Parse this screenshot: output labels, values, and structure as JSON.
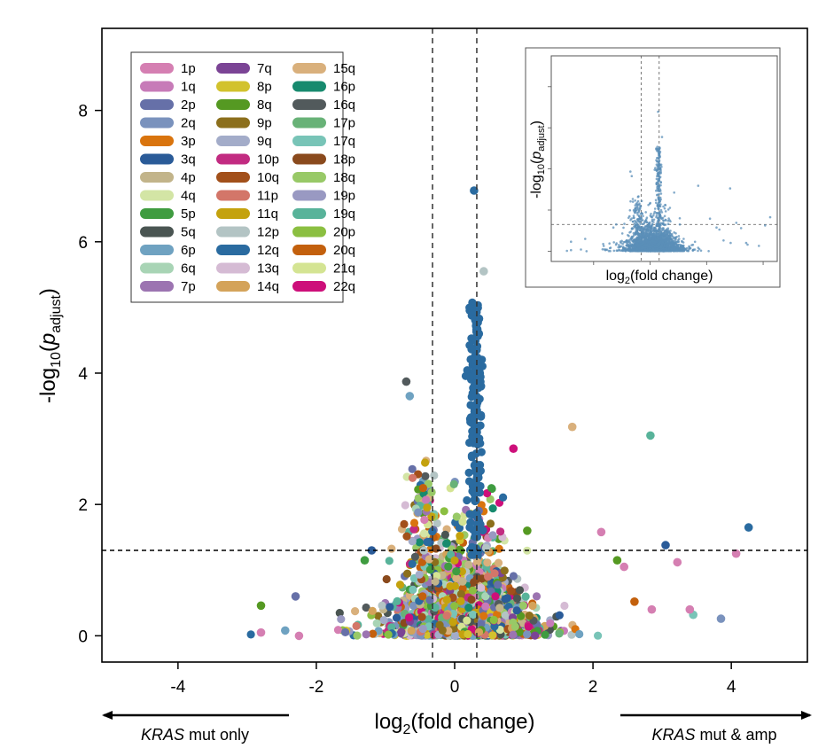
{
  "chart_data": {
    "type": "scatter",
    "title": "",
    "xlabel_pre": "log",
    "xlabel_sub": "2",
    "xlabel_post": "(fold change)",
    "ylabel_pre": "-log",
    "ylabel_sub": "10",
    "ylabel_mid": "(",
    "ylabel_p": "p",
    "ylabel_psub": "adjust",
    "ylabel_post": ")",
    "xlim": [
      -5.1,
      5.1
    ],
    "ylim": [
      -0.4,
      9.25
    ],
    "x_ticks": [
      -4,
      -2,
      0,
      2,
      4
    ],
    "x_tick_labels": [
      "-4",
      "-2",
      "0",
      "2",
      "4"
    ],
    "y_ticks": [
      0,
      2,
      4,
      6,
      8
    ],
    "y_tick_labels": [
      "0",
      "2",
      "4",
      "6",
      "8"
    ],
    "threshold_lines": {
      "vertical": [
        -0.32,
        0.32
      ],
      "horizontal": 1.3
    },
    "legend_position": "top-left",
    "legend": [
      {
        "label": "1p",
        "color": "#d57fb2"
      },
      {
        "label": "1q",
        "color": "#c77bb8"
      },
      {
        "label": "2p",
        "color": "#6670a8"
      },
      {
        "label": "2q",
        "color": "#7a92bd"
      },
      {
        "label": "3p",
        "color": "#d9740e"
      },
      {
        "label": "3q",
        "color": "#2a5b98"
      },
      {
        "label": "4p",
        "color": "#c2b48a"
      },
      {
        "label": "4q",
        "color": "#d3e5a5"
      },
      {
        "label": "5p",
        "color": "#3f9c40"
      },
      {
        "label": "5q",
        "color": "#4a5552"
      },
      {
        "label": "6p",
        "color": "#6fa2c1"
      },
      {
        "label": "6q",
        "color": "#a8d4b5"
      },
      {
        "label": "7p",
        "color": "#9c74b1"
      },
      {
        "label": "7q",
        "color": "#7b4495"
      },
      {
        "label": "8p",
        "color": "#d2c22d"
      },
      {
        "label": "8q",
        "color": "#559922"
      },
      {
        "label": "9p",
        "color": "#8c6f1c"
      },
      {
        "label": "9q",
        "color": "#a3acc9"
      },
      {
        "label": "10p",
        "color": "#c22b81"
      },
      {
        "label": "10q",
        "color": "#a2501a"
      },
      {
        "label": "11p",
        "color": "#d37669"
      },
      {
        "label": "11q",
        "color": "#c4a20e"
      },
      {
        "label": "12p",
        "color": "#b3c4c4"
      },
      {
        "label": "12q",
        "color": "#2a6ba0"
      },
      {
        "label": "13q",
        "color": "#d5bbd4"
      },
      {
        "label": "14q",
        "color": "#d4a35a"
      },
      {
        "label": "15q",
        "color": "#d9b07c"
      },
      {
        "label": "16p",
        "color": "#178a6e"
      },
      {
        "label": "16q",
        "color": "#525a5c"
      },
      {
        "label": "17p",
        "color": "#68b277"
      },
      {
        "label": "17q",
        "color": "#78c4b7"
      },
      {
        "label": "18p",
        "color": "#8a4a1d"
      },
      {
        "label": "18q",
        "color": "#98c967"
      },
      {
        "label": "19p",
        "color": "#9999c2"
      },
      {
        "label": "19q",
        "color": "#58b39a"
      },
      {
        "label": "20p",
        "color": "#8bbf41"
      },
      {
        "label": "20q",
        "color": "#c3600d"
      },
      {
        "label": "21q",
        "color": "#d4e493"
      },
      {
        "label": "22q",
        "color": "#cd0f7a"
      }
    ],
    "highlight_points": [
      {
        "x": 0.28,
        "y": 6.78,
        "group": "12q"
      },
      {
        "x": 0.42,
        "y": 5.55,
        "group": "12p"
      },
      {
        "x": 0.33,
        "y": 5.0,
        "group": "12q"
      },
      {
        "x": 0.35,
        "y": 4.6,
        "group": "12q"
      },
      {
        "x": 0.3,
        "y": 4.2,
        "group": "12q"
      },
      {
        "x": 0.38,
        "y": 3.8,
        "group": "12q"
      },
      {
        "x": 0.32,
        "y": 3.2,
        "group": "12q"
      },
      {
        "x": -0.7,
        "y": 3.87,
        "group": "16q"
      },
      {
        "x": -0.65,
        "y": 3.65,
        "group": "6p"
      },
      {
        "x": 2.83,
        "y": 3.05,
        "group": "19q"
      },
      {
        "x": 1.7,
        "y": 3.18,
        "group": "15q"
      },
      {
        "x": 0.85,
        "y": 2.85,
        "group": "22q"
      },
      {
        "x": 4.25,
        "y": 1.65,
        "group": "12q"
      },
      {
        "x": 2.12,
        "y": 1.58,
        "group": "1p"
      },
      {
        "x": 1.05,
        "y": 1.6,
        "group": "8q"
      },
      {
        "x": 3.05,
        "y": 1.38,
        "group": "3q"
      },
      {
        "x": 4.07,
        "y": 1.25,
        "group": "1p"
      },
      {
        "x": 3.22,
        "y": 1.12,
        "group": "1p"
      },
      {
        "x": 3.85,
        "y": 0.26,
        "group": "2q"
      },
      {
        "x": 3.45,
        "y": 0.32,
        "group": "17q"
      },
      {
        "x": 3.4,
        "y": 0.4,
        "group": "1p"
      },
      {
        "x": 2.85,
        "y": 0.4,
        "group": "1p"
      },
      {
        "x": 2.6,
        "y": 0.52,
        "group": "20q"
      },
      {
        "x": 2.35,
        "y": 1.15,
        "group": "8q"
      },
      {
        "x": 2.45,
        "y": 1.05,
        "group": "1p"
      },
      {
        "x": -2.8,
        "y": 0.46,
        "group": "8q"
      },
      {
        "x": -2.8,
        "y": 0.05,
        "group": "1p"
      },
      {
        "x": -2.3,
        "y": 0.6,
        "group": "2p"
      },
      {
        "x": -2.45,
        "y": 0.08,
        "group": "6p"
      },
      {
        "x": -2.25,
        "y": 0.0,
        "group": "1p"
      },
      {
        "x": -1.3,
        "y": 1.15,
        "group": "5p"
      },
      {
        "x": -1.2,
        "y": 1.3,
        "group": "3q"
      }
    ],
    "cloud_seed": 42,
    "cloud_count": 2600,
    "inset": {
      "xlabel_pre": "log",
      "xlabel_sub": "2",
      "xlabel_post": "(fold change)",
      "ylabel_pre": "-log",
      "ylabel_sub": "10",
      "ylabel_mid": "(",
      "ylabel_p": "p",
      "ylabel_psub": "adjust",
      "ylabel_post": ")",
      "color": "#5b8fb8",
      "threshold_lines": {
        "vertical": [
          -0.32,
          0.32
        ],
        "horizontal": 1.3
      },
      "xlim": [
        -3.5,
        4.5
      ],
      "ylim": [
        -0.5,
        9.5
      ],
      "x_ticks": [
        -2,
        0,
        2,
        4
      ],
      "y_ticks": [
        0,
        2,
        4,
        6,
        8
      ]
    }
  },
  "footer": {
    "left_note_italic": "KRAS",
    "left_note_rest": " mut only",
    "right_note_italic": "KRAS",
    "right_note_rest": " mut & amp"
  }
}
